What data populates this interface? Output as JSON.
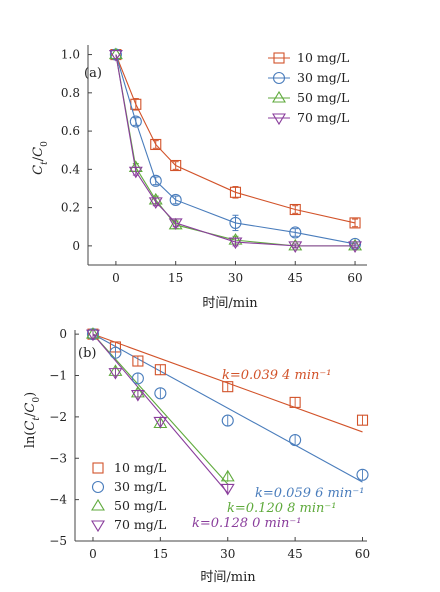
{
  "chart_data": [
    {
      "type": "line",
      "panel_label": "(a)",
      "xlabel": "时间/min",
      "ylabel": "Ct/C0",
      "xlim": [
        -7,
        63
      ],
      "ylim": [
        -0.1,
        1.05
      ],
      "xticks": [
        0,
        15,
        30,
        45,
        60
      ],
      "yticks": [
        0,
        0.2,
        0.4,
        0.6,
        0.8,
        1.0
      ],
      "ytick_labels": [
        "0",
        "0.2",
        "0.4",
        "0.6",
        "0.8",
        "1.0"
      ],
      "legend_position": "top-right",
      "series": [
        {
          "name": "10 mg/L",
          "marker": "square",
          "color": "#d2532a",
          "x": [
            0,
            5,
            10,
            15,
            30,
            45,
            60
          ],
          "y": [
            1.0,
            0.74,
            0.53,
            0.42,
            0.28,
            0.19,
            0.12
          ],
          "err": [
            0,
            0.03,
            0.02,
            0.02,
            0.03,
            0.02,
            0.02
          ]
        },
        {
          "name": "30 mg/L",
          "marker": "circle",
          "color": "#4a7dbc",
          "x": [
            0,
            5,
            10,
            15,
            30,
            45,
            60
          ],
          "y": [
            1.0,
            0.65,
            0.34,
            0.24,
            0.12,
            0.07,
            0.01
          ],
          "err": [
            0,
            0.02,
            0.02,
            0.02,
            0.04,
            0.02,
            0.01
          ]
        },
        {
          "name": "50 mg/L",
          "marker": "triangle-up",
          "color": "#5faa3c",
          "x": [
            0,
            5,
            10,
            15,
            30,
            45,
            60
          ],
          "y": [
            1.0,
            0.41,
            0.24,
            0.11,
            0.03,
            0.0,
            0.0
          ],
          "err": [
            0,
            0.02,
            0.02,
            0.02,
            0.02,
            0.01,
            0.01
          ]
        },
        {
          "name": "70 mg/L",
          "marker": "triangle-down",
          "color": "#8a3e9c",
          "x": [
            0,
            5,
            10,
            15,
            30,
            45,
            60
          ],
          "y": [
            1.0,
            0.39,
            0.23,
            0.12,
            0.02,
            0.0,
            0.0
          ],
          "err": [
            0,
            0.02,
            0.02,
            0.02,
            0.02,
            0.01,
            0.01
          ]
        }
      ]
    },
    {
      "type": "scatter",
      "panel_label": "(b)",
      "xlabel": "时间/min",
      "ylabel": "ln(Ct/C0)",
      "xlim": [
        -4,
        61
      ],
      "ylim": [
        -5,
        0.1
      ],
      "xticks": [
        0,
        15,
        30,
        45,
        60
      ],
      "yticks": [
        0,
        -1,
        -2,
        -3,
        -4,
        -5
      ],
      "ytick_labels": [
        "0",
        "−1",
        "−2",
        "−3",
        "−4",
        "−5"
      ],
      "legend_position": "bottom-left",
      "series": [
        {
          "name": "10 mg/L",
          "marker": "square",
          "color": "#d2532a",
          "x": [
            0,
            5,
            10,
            15,
            30,
            45,
            60
          ],
          "y": [
            0,
            -0.31,
            -0.65,
            -0.86,
            -1.27,
            -1.65,
            -2.08
          ],
          "fit_slope": -0.0394,
          "fit_x_end": 60,
          "k_label": "k=0.039 4 min⁻¹"
        },
        {
          "name": "30 mg/L",
          "marker": "circle",
          "color": "#4a7dbc",
          "x": [
            0,
            5,
            10,
            15,
            30,
            45,
            60
          ],
          "y": [
            0,
            -0.45,
            -1.07,
            -1.43,
            -2.09,
            -2.56,
            -3.4
          ],
          "fit_slope": -0.0596,
          "fit_x_end": 60,
          "k_label": "k=0.059 6 min⁻¹"
        },
        {
          "name": "50 mg/L",
          "marker": "triangle-up",
          "color": "#5faa3c",
          "x": [
            0,
            5,
            10,
            15,
            30
          ],
          "y": [
            0,
            -0.9,
            -1.42,
            -2.16,
            -3.45
          ],
          "fit_slope": -0.1208,
          "fit_x_end": 30,
          "k_label": "k=0.120 8 min⁻¹"
        },
        {
          "name": "70 mg/L",
          "marker": "triangle-down",
          "color": "#8a3e9c",
          "x": [
            0,
            5,
            10,
            15,
            30
          ],
          "y": [
            0,
            -0.93,
            -1.46,
            -2.11,
            -3.73
          ],
          "fit_slope": -0.128,
          "fit_x_end": 30,
          "k_label": "k=0.128 0 min⁻¹"
        }
      ]
    }
  ]
}
